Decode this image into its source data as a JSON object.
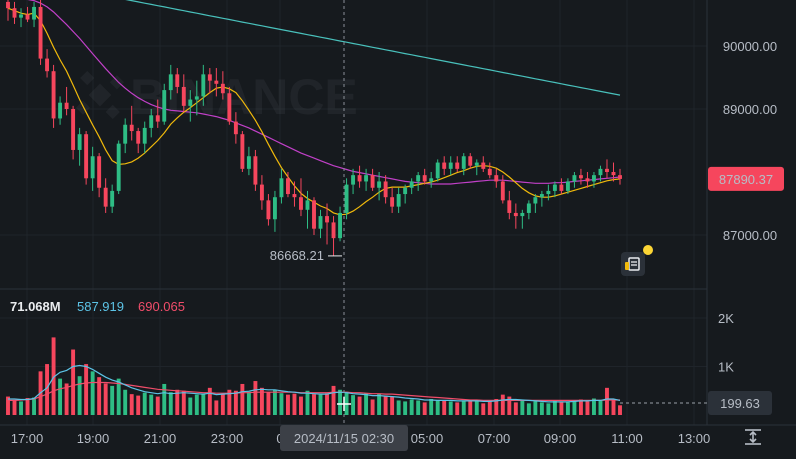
{
  "chart_data": {
    "type": "candlestick",
    "price_axis": {
      "ticks": [
        {
          "value": 90000,
          "label": "90000.00"
        },
        {
          "value": 89000,
          "label": "89000.00"
        },
        {
          "value": 87000,
          "label": "87000.00"
        }
      ],
      "current_price_label": "87890.37",
      "current_price": 87890.37,
      "min_price_label": "86668.21",
      "min_price": 86668.21
    },
    "volume_axis": {
      "ticks": [
        {
          "value": 2000,
          "label": "2K"
        },
        {
          "value": 1000,
          "label": "1K"
        }
      ],
      "current_volume_label": "199.63",
      "current_volume": 199.63
    },
    "volume_legend": {
      "volume": "71.068M",
      "ma_short": "587.919",
      "ma_long": "690.065"
    },
    "time_axis": {
      "labels": [
        "17:00",
        "19:00",
        "21:00",
        "23:00",
        "0",
        "05:00",
        "07:00",
        "09:00",
        "11:00",
        "13:00"
      ],
      "crosshair_label": "2024/11/15 02:30"
    },
    "watermark": "BINANCE",
    "colors": {
      "up": "#2ebd85",
      "down": "#f6465d",
      "ma7": "#f0b90b",
      "ma25": "#c140c8",
      "ma99": "#49c1bc",
      "vol_ma_short": "#5cc3e6",
      "vol_ma_long": "#f04d6a"
    },
    "candles": [
      [
        90700,
        90750,
        90400,
        90600
      ],
      [
        90600,
        90700,
        90350,
        90450
      ],
      [
        90450,
        90600,
        90300,
        90500
      ],
      [
        90500,
        90620,
        90380,
        90420
      ],
      [
        90420,
        90700,
        90300,
        90620
      ],
      [
        90620,
        90750,
        89700,
        89800
      ],
      [
        89800,
        89950,
        89500,
        89600
      ],
      [
        89600,
        89700,
        88700,
        88850
      ],
      [
        88850,
        89200,
        88750,
        89100
      ],
      [
        89100,
        89350,
        88900,
        89000
      ],
      [
        89000,
        89050,
        88200,
        88350
      ],
      [
        88350,
        88700,
        88100,
        88600
      ],
      [
        88600,
        88650,
        87800,
        87900
      ],
      [
        87900,
        88400,
        87700,
        88250
      ],
      [
        88250,
        88300,
        87600,
        87750
      ],
      [
        87750,
        87900,
        87350,
        87450
      ],
      [
        87450,
        87800,
        87350,
        87700
      ],
      [
        87700,
        88500,
        87650,
        88450
      ],
      [
        88450,
        88850,
        88300,
        88750
      ],
      [
        88750,
        89050,
        88500,
        88650
      ],
      [
        88650,
        88700,
        88300,
        88450
      ],
      [
        88450,
        88800,
        88300,
        88700
      ],
      [
        88700,
        89000,
        88550,
        88900
      ],
      [
        88900,
        89150,
        88700,
        88800
      ],
      [
        88800,
        89400,
        88750,
        89300
      ],
      [
        89300,
        89700,
        89150,
        89550
      ],
      [
        89550,
        89650,
        89250,
        89350
      ],
      [
        89350,
        89550,
        88950,
        89050
      ],
      [
        89050,
        89300,
        88800,
        89150
      ],
      [
        89150,
        89450,
        88900,
        89200
      ],
      [
        89200,
        89700,
        89050,
        89550
      ],
      [
        89550,
        89650,
        89250,
        89450
      ],
      [
        89450,
        89650,
        89200,
        89400
      ],
      [
        89400,
        89600,
        89150,
        89250
      ],
      [
        89250,
        89350,
        88750,
        88800
      ],
      [
        88800,
        88950,
        88450,
        88600
      ],
      [
        88600,
        88650,
        88000,
        88050
      ],
      [
        88050,
        88400,
        87950,
        88250
      ],
      [
        88250,
        88350,
        87700,
        87800
      ],
      [
        87800,
        87950,
        87400,
        87550
      ],
      [
        87550,
        87650,
        87150,
        87250
      ],
      [
        87250,
        87700,
        87050,
        87600
      ],
      [
        87600,
        88050,
        87500,
        87900
      ],
      [
        87900,
        88000,
        87600,
        87650
      ],
      [
        87650,
        87850,
        87450,
        87600
      ],
      [
        87600,
        87900,
        87300,
        87400
      ],
      [
        87400,
        87700,
        87100,
        87550
      ],
      [
        87550,
        87600,
        87000,
        87100
      ],
      [
        87100,
        87400,
        86950,
        87300
      ],
      [
        87300,
        87500,
        86850,
        87200
      ],
      [
        87200,
        87300,
        86668,
        86950
      ],
      [
        86950,
        87450,
        86900,
        87350
      ],
      [
        87350,
        87900,
        87250,
        87800
      ],
      [
        87800,
        88050,
        87650,
        87950
      ],
      [
        87950,
        88100,
        87750,
        87850
      ],
      [
        87850,
        88050,
        87700,
        87950
      ],
      [
        87950,
        88050,
        87700,
        87750
      ],
      [
        87750,
        88000,
        87550,
        87850
      ],
      [
        87850,
        87950,
        87500,
        87600
      ],
      [
        87600,
        87750,
        87350,
        87450
      ],
      [
        87450,
        87750,
        87350,
        87650
      ],
      [
        87650,
        87800,
        87500,
        87750
      ],
      [
        87750,
        87900,
        87650,
        87850
      ],
      [
        87850,
        88000,
        87700,
        87950
      ],
      [
        87950,
        88050,
        87800,
        87850
      ],
      [
        87850,
        88000,
        87750,
        87900
      ],
      [
        87900,
        88200,
        87850,
        88150
      ],
      [
        88150,
        88250,
        87950,
        88050
      ],
      [
        88050,
        88250,
        87950,
        88150
      ],
      [
        88150,
        88250,
        88000,
        88050
      ],
      [
        88050,
        88300,
        87950,
        88250
      ],
      [
        88250,
        88300,
        88050,
        88100
      ],
      [
        88100,
        88200,
        87950,
        88150
      ],
      [
        88150,
        88250,
        88000,
        88050
      ],
      [
        88050,
        88150,
        87900,
        87950
      ],
      [
        87950,
        88050,
        87750,
        87850
      ],
      [
        87850,
        87950,
        87500,
        87550
      ],
      [
        87550,
        87700,
        87250,
        87350
      ],
      [
        87350,
        87500,
        87100,
        87300
      ],
      [
        87300,
        87400,
        87100,
        87350
      ],
      [
        87350,
        87550,
        87250,
        87500
      ],
      [
        87500,
        87650,
        87350,
        87600
      ],
      [
        87600,
        87700,
        87450,
        87650
      ],
      [
        87650,
        87800,
        87550,
        87700
      ],
      [
        87700,
        87850,
        87600,
        87800
      ],
      [
        87800,
        87900,
        87650,
        87700
      ],
      [
        87700,
        87900,
        87650,
        87850
      ],
      [
        87850,
        88000,
        87750,
        87950
      ],
      [
        87950,
        88050,
        87800,
        87900
      ],
      [
        87900,
        88000,
        87750,
        87850
      ],
      [
        87850,
        88000,
        87750,
        87950
      ],
      [
        87950,
        88100,
        87850,
        88050
      ],
      [
        88050,
        88200,
        87900,
        88000
      ],
      [
        88000,
        88150,
        87850,
        87950
      ],
      [
        87950,
        88050,
        87800,
        87890
      ]
    ],
    "volumes": [
      380,
      310,
      280,
      350,
      360,
      900,
      1050,
      1600,
      750,
      650,
      1350,
      800,
      1050,
      900,
      780,
      650,
      600,
      750,
      520,
      430,
      400,
      460,
      420,
      380,
      640,
      470,
      520,
      500,
      360,
      420,
      440,
      560,
      300,
      430,
      520,
      500,
      640,
      480,
      700,
      560,
      470,
      520,
      450,
      420,
      440,
      380,
      500,
      430,
      420,
      450,
      600,
      520,
      480,
      410,
      380,
      450,
      320,
      440,
      400,
      380,
      300,
      280,
      320,
      300,
      260,
      330,
      300,
      290,
      280,
      260,
      300,
      310,
      280,
      240,
      300,
      330,
      420,
      380,
      260,
      300,
      240,
      280,
      260,
      240,
      300,
      280,
      260,
      300,
      320,
      280,
      340,
      310,
      560,
      300,
      200
    ],
    "ma7": [
      90600,
      90560,
      90520,
      90500,
      90520,
      90400,
      90200,
      89980,
      89780,
      89600,
      89380,
      89150,
      88950,
      88750,
      88560,
      88350,
      88180,
      88120,
      88130,
      88160,
      88220,
      88300,
      88400,
      88500,
      88620,
      88760,
      88860,
      88950,
      89020,
      89100,
      89180,
      89260,
      89330,
      89350,
      89320,
      89260,
      89130,
      88980,
      88820,
      88640,
      88440,
      88250,
      88070,
      87920,
      87780,
      87660,
      87580,
      87520,
      87460,
      87420,
      87350,
      87320,
      87330,
      87380,
      87450,
      87530,
      87600,
      87680,
      87740,
      87760,
      87760,
      87760,
      87780,
      87800,
      87820,
      87840,
      87870,
      87910,
      87950,
      87990,
      88020,
      88060,
      88090,
      88100,
      88090,
      88060,
      88000,
      87920,
      87830,
      87740,
      87670,
      87620,
      87600,
      87600,
      87620,
      87650,
      87680,
      87710,
      87740,
      87770,
      87800,
      87830,
      87860,
      87880,
      87890
    ],
    "ma25": [
      90800,
      90780,
      90760,
      90740,
      90720,
      90680,
      90620,
      90540,
      90440,
      90340,
      90230,
      90120,
      90000,
      89880,
      89760,
      89640,
      89530,
      89420,
      89330,
      89250,
      89180,
      89120,
      89070,
      89030,
      89000,
      88980,
      88970,
      88960,
      88950,
      88940,
      88920,
      88900,
      88880,
      88850,
      88820,
      88780,
      88740,
      88700,
      88650,
      88600,
      88550,
      88500,
      88450,
      88400,
      88350,
      88300,
      88260,
      88220,
      88180,
      88140,
      88100,
      88070,
      88040,
      88010,
      87990,
      87970,
      87950,
      87930,
      87910,
      87890,
      87870,
      87850,
      87840,
      87830,
      87820,
      87810,
      87810,
      87810,
      87810,
      87820,
      87830,
      87840,
      87850,
      87860,
      87870,
      87870,
      87870,
      87860,
      87850,
      87840,
      87830,
      87820,
      87820,
      87820,
      87830,
      87830,
      87840,
      87850,
      87860,
      87870,
      87880,
      87890,
      87900,
      87910,
      87920
    ],
    "ma99": [
      91100,
      91080,
      91060,
      91040,
      91020,
      91000,
      90980,
      90960,
      90940,
      90920,
      90900,
      90880,
      90860,
      90840,
      90820,
      90800,
      90780,
      90760,
      90740,
      90720,
      90700,
      90680,
      90660,
      90640,
      90620,
      90600,
      90580,
      90560,
      90540,
      90520,
      90500,
      90480,
      90460,
      90440,
      90420,
      90400,
      90380,
      90360,
      90340,
      90320,
      90300,
      90280,
      90260,
      90240,
      90220,
      90200,
      90180,
      90160,
      90140,
      90120,
      90100,
      90080,
      90060,
      90040,
      90020,
      90000,
      89980,
      89960,
      89940,
      89920,
      89900,
      89880,
      89860,
      89840,
      89820,
      89800,
      89780,
      89760,
      89740,
      89720,
      89700,
      89680,
      89660,
      89640,
      89620,
      89600,
      89580,
      89560,
      89540,
      89520,
      89500,
      89480,
      89460,
      89440,
      89420,
      89400,
      89380,
      89360,
      89340,
      89320,
      89300,
      89280,
      89260,
      89240,
      89220
    ],
    "vol_ma_short": [
      330,
      330,
      320,
      320,
      340,
      460,
      560,
      780,
      880,
      920,
      1000,
      1020,
      1000,
      940,
      860,
      780,
      720,
      680,
      620,
      560,
      520,
      480,
      460,
      440,
      460,
      440,
      450,
      460,
      450,
      440,
      430,
      450,
      420,
      430,
      440,
      450,
      480,
      490,
      520,
      530,
      520,
      520,
      500,
      480,
      470,
      450,
      450,
      440,
      430,
      430,
      460,
      470,
      460,
      440,
      430,
      420,
      400,
      400,
      390,
      380,
      370,
      350,
      340,
      330,
      310,
      310,
      300,
      300,
      300,
      290,
      290,
      290,
      290,
      280,
      280,
      290,
      310,
      320,
      320,
      310,
      300,
      290,
      280,
      270,
      270,
      270,
      270,
      280,
      290,
      290,
      300,
      300,
      330,
      330,
      300
    ],
    "vol_ma_long": [
      300,
      300,
      310,
      320,
      330,
      380,
      430,
      500,
      540,
      570,
      610,
      640,
      660,
      670,
      670,
      670,
      660,
      650,
      630,
      610,
      590,
      570,
      550,
      530,
      520,
      510,
      500,
      490,
      480,
      470,
      460,
      460,
      450,
      450,
      450,
      450,
      460,
      460,
      470,
      470,
      470,
      470,
      470,
      470,
      470,
      460,
      460,
      460,
      460,
      460,
      470,
      470,
      470,
      460,
      460,
      450,
      440,
      440,
      430,
      430,
      420,
      410,
      400,
      390,
      380,
      370,
      360,
      350,
      340,
      330,
      320,
      310,
      310,
      300,
      300,
      300,
      300,
      300,
      300,
      300,
      300,
      300,
      300,
      300,
      300,
      300,
      300,
      300,
      300,
      300,
      300,
      300,
      310,
      310,
      310
    ]
  }
}
